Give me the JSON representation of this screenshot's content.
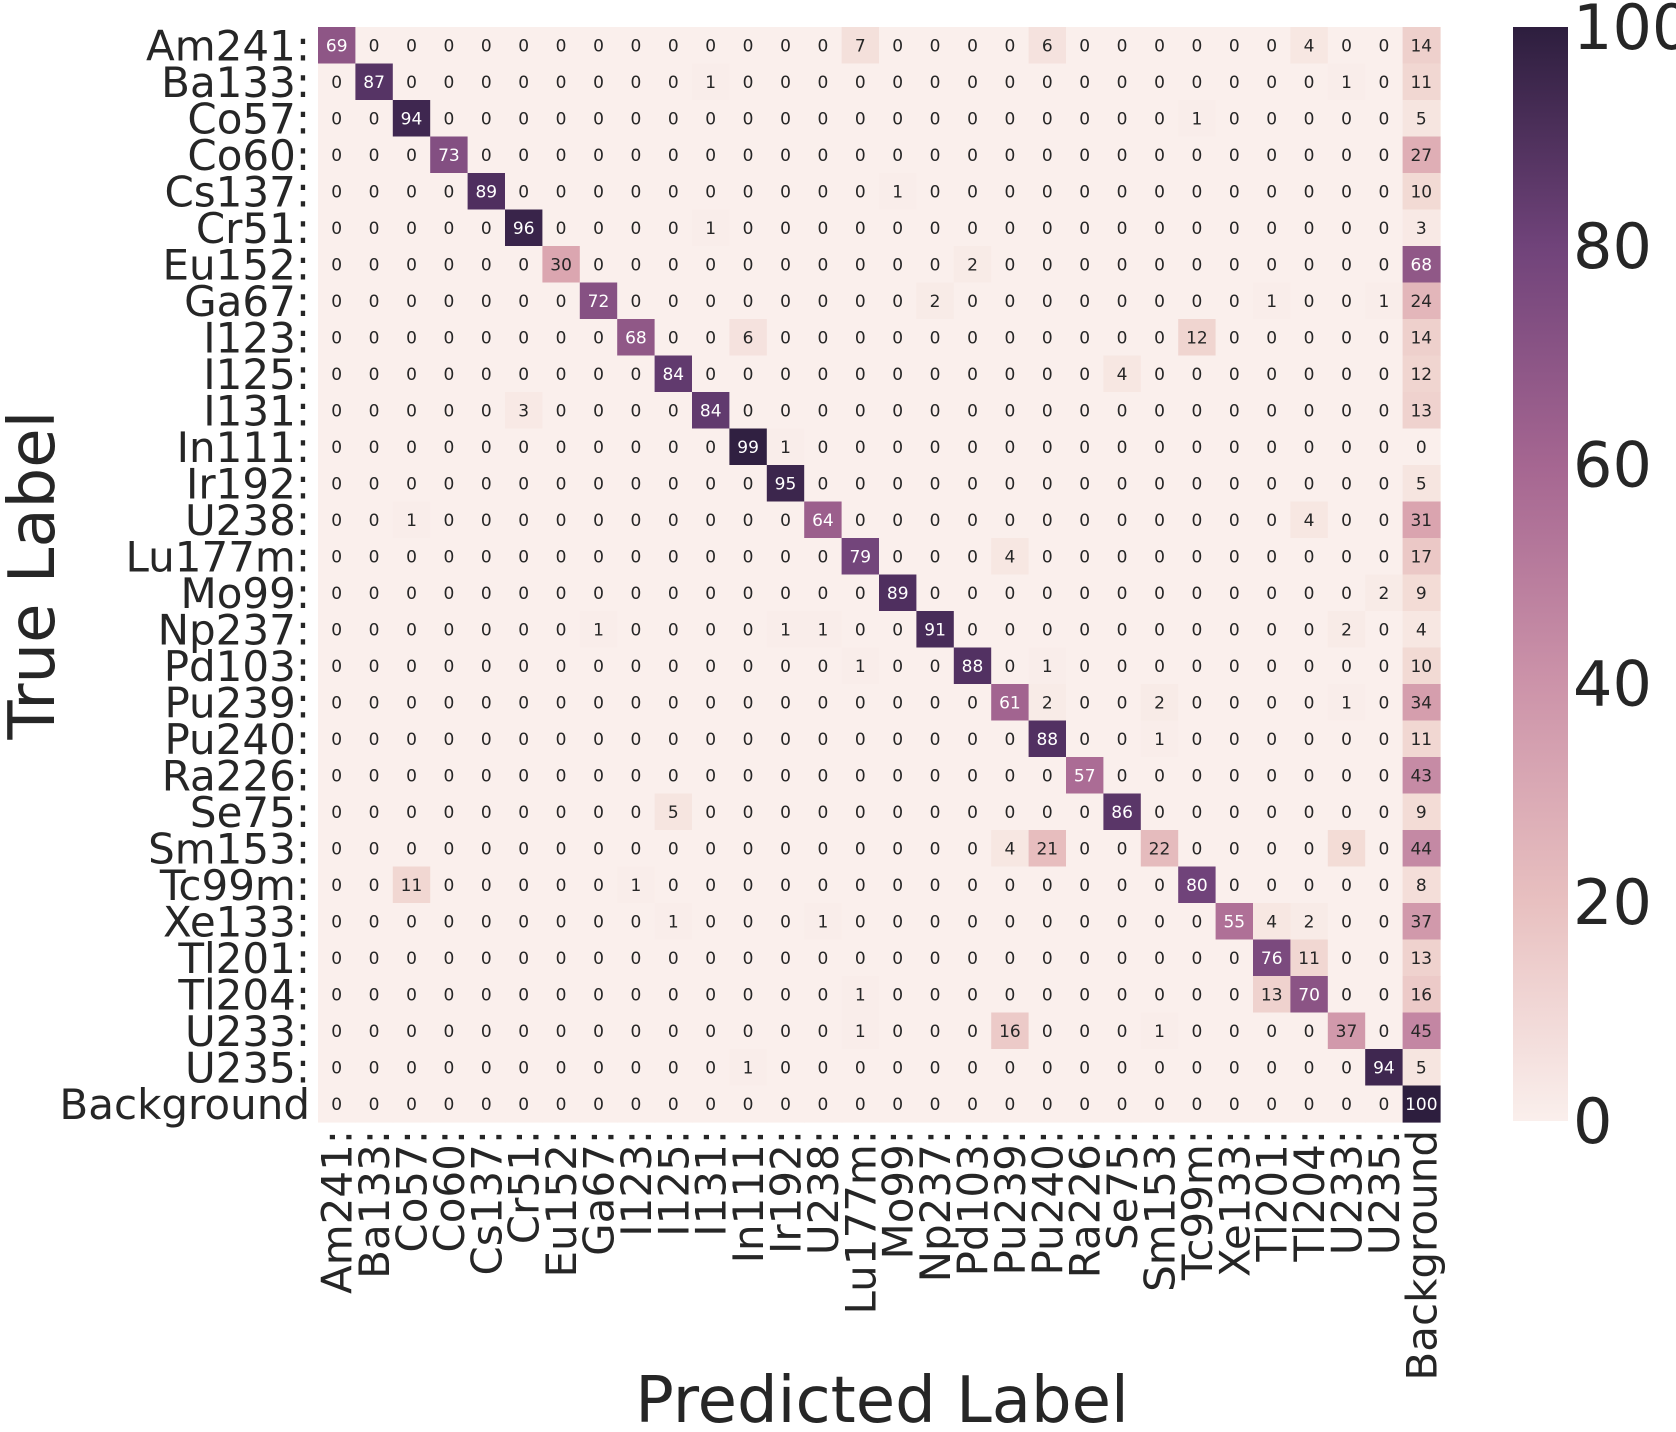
{
  "chart_data": {
    "type": "heatmap",
    "xlabel": "Predicted Label",
    "ylabel": "True Label",
    "x_categories": [
      "Am241:",
      "Ba133:",
      "Co57:",
      "Co60:",
      "Cs137:",
      "Cr51:",
      "Eu152:",
      "Ga67:",
      "I123:",
      "I125:",
      "I131:",
      "In111:",
      "Ir192:",
      "U238:",
      "Lu177m:",
      "Mo99:",
      "Np237:",
      "Pd103:",
      "Pu239:",
      "Pu240:",
      "Ra226:",
      "Se75:",
      "Sm153:",
      "Tc99m:",
      "Xe133:",
      "Tl201:",
      "Tl204:",
      "U233:",
      "U235:",
      "Background"
    ],
    "y_categories": [
      "Am241:",
      "Ba133:",
      "Co57:",
      "Co60:",
      "Cs137:",
      "Cr51:",
      "Eu152:",
      "Ga67:",
      "I123:",
      "I125:",
      "I131:",
      "In111:",
      "Ir192:",
      "U238:",
      "Lu177m:",
      "Mo99:",
      "Np237:",
      "Pd103:",
      "Pu239:",
      "Pu240:",
      "Ra226:",
      "Se75:",
      "Sm153:",
      "Tc99m:",
      "Xe133:",
      "Tl201:",
      "Tl204:",
      "U233:",
      "U235:",
      "Background"
    ],
    "values": [
      [
        69,
        0,
        0,
        0,
        0,
        0,
        0,
        0,
        0,
        0,
        0,
        0,
        0,
        0,
        7,
        0,
        0,
        0,
        0,
        6,
        0,
        0,
        0,
        0,
        0,
        0,
        4,
        0,
        0,
        14
      ],
      [
        0,
        87,
        0,
        0,
        0,
        0,
        0,
        0,
        0,
        0,
        1,
        0,
        0,
        0,
        0,
        0,
        0,
        0,
        0,
        0,
        0,
        0,
        0,
        0,
        0,
        0,
        0,
        1,
        0,
        11
      ],
      [
        0,
        0,
        94,
        0,
        0,
        0,
        0,
        0,
        0,
        0,
        0,
        0,
        0,
        0,
        0,
        0,
        0,
        0,
        0,
        0,
        0,
        0,
        0,
        1,
        0,
        0,
        0,
        0,
        0,
        5
      ],
      [
        0,
        0,
        0,
        73,
        0,
        0,
        0,
        0,
        0,
        0,
        0,
        0,
        0,
        0,
        0,
        0,
        0,
        0,
        0,
        0,
        0,
        0,
        0,
        0,
        0,
        0,
        0,
        0,
        0,
        27
      ],
      [
        0,
        0,
        0,
        0,
        89,
        0,
        0,
        0,
        0,
        0,
        0,
        0,
        0,
        0,
        0,
        1,
        0,
        0,
        0,
        0,
        0,
        0,
        0,
        0,
        0,
        0,
        0,
        0,
        0,
        10
      ],
      [
        0,
        0,
        0,
        0,
        0,
        96,
        0,
        0,
        0,
        0,
        1,
        0,
        0,
        0,
        0,
        0,
        0,
        0,
        0,
        0,
        0,
        0,
        0,
        0,
        0,
        0,
        0,
        0,
        0,
        3
      ],
      [
        0,
        0,
        0,
        0,
        0,
        0,
        30,
        0,
        0,
        0,
        0,
        0,
        0,
        0,
        0,
        0,
        0,
        2,
        0,
        0,
        0,
        0,
        0,
        0,
        0,
        0,
        0,
        0,
        0,
        68
      ],
      [
        0,
        0,
        0,
        0,
        0,
        0,
        0,
        72,
        0,
        0,
        0,
        0,
        0,
        0,
        0,
        0,
        2,
        0,
        0,
        0,
        0,
        0,
        0,
        0,
        0,
        1,
        0,
        0,
        1,
        24
      ],
      [
        0,
        0,
        0,
        0,
        0,
        0,
        0,
        0,
        68,
        0,
        0,
        6,
        0,
        0,
        0,
        0,
        0,
        0,
        0,
        0,
        0,
        0,
        0,
        12,
        0,
        0,
        0,
        0,
        0,
        14
      ],
      [
        0,
        0,
        0,
        0,
        0,
        0,
        0,
        0,
        0,
        84,
        0,
        0,
        0,
        0,
        0,
        0,
        0,
        0,
        0,
        0,
        0,
        4,
        0,
        0,
        0,
        0,
        0,
        0,
        0,
        12
      ],
      [
        0,
        0,
        0,
        0,
        0,
        3,
        0,
        0,
        0,
        0,
        84,
        0,
        0,
        0,
        0,
        0,
        0,
        0,
        0,
        0,
        0,
        0,
        0,
        0,
        0,
        0,
        0,
        0,
        0,
        13
      ],
      [
        0,
        0,
        0,
        0,
        0,
        0,
        0,
        0,
        0,
        0,
        0,
        99,
        1,
        0,
        0,
        0,
        0,
        0,
        0,
        0,
        0,
        0,
        0,
        0,
        0,
        0,
        0,
        0,
        0,
        0
      ],
      [
        0,
        0,
        0,
        0,
        0,
        0,
        0,
        0,
        0,
        0,
        0,
        0,
        95,
        0,
        0,
        0,
        0,
        0,
        0,
        0,
        0,
        0,
        0,
        0,
        0,
        0,
        0,
        0,
        0,
        5
      ],
      [
        0,
        0,
        1,
        0,
        0,
        0,
        0,
        0,
        0,
        0,
        0,
        0,
        0,
        64,
        0,
        0,
        0,
        0,
        0,
        0,
        0,
        0,
        0,
        0,
        0,
        0,
        4,
        0,
        0,
        31
      ],
      [
        0,
        0,
        0,
        0,
        0,
        0,
        0,
        0,
        0,
        0,
        0,
        0,
        0,
        0,
        79,
        0,
        0,
        0,
        4,
        0,
        0,
        0,
        0,
        0,
        0,
        0,
        0,
        0,
        0,
        17
      ],
      [
        0,
        0,
        0,
        0,
        0,
        0,
        0,
        0,
        0,
        0,
        0,
        0,
        0,
        0,
        0,
        89,
        0,
        0,
        0,
        0,
        0,
        0,
        0,
        0,
        0,
        0,
        0,
        0,
        2,
        9
      ],
      [
        0,
        0,
        0,
        0,
        0,
        0,
        0,
        1,
        0,
        0,
        0,
        0,
        1,
        1,
        0,
        0,
        91,
        0,
        0,
        0,
        0,
        0,
        0,
        0,
        0,
        0,
        0,
        2,
        0,
        4
      ],
      [
        0,
        0,
        0,
        0,
        0,
        0,
        0,
        0,
        0,
        0,
        0,
        0,
        0,
        0,
        1,
        0,
        0,
        88,
        0,
        1,
        0,
        0,
        0,
        0,
        0,
        0,
        0,
        0,
        0,
        10
      ],
      [
        0,
        0,
        0,
        0,
        0,
        0,
        0,
        0,
        0,
        0,
        0,
        0,
        0,
        0,
        0,
        0,
        0,
        0,
        61,
        2,
        0,
        0,
        2,
        0,
        0,
        0,
        0,
        1,
        0,
        34
      ],
      [
        0,
        0,
        0,
        0,
        0,
        0,
        0,
        0,
        0,
        0,
        0,
        0,
        0,
        0,
        0,
        0,
        0,
        0,
        0,
        88,
        0,
        0,
        1,
        0,
        0,
        0,
        0,
        0,
        0,
        11
      ],
      [
        0,
        0,
        0,
        0,
        0,
        0,
        0,
        0,
        0,
        0,
        0,
        0,
        0,
        0,
        0,
        0,
        0,
        0,
        0,
        0,
        57,
        0,
        0,
        0,
        0,
        0,
        0,
        0,
        0,
        43
      ],
      [
        0,
        0,
        0,
        0,
        0,
        0,
        0,
        0,
        0,
        5,
        0,
        0,
        0,
        0,
        0,
        0,
        0,
        0,
        0,
        0,
        0,
        86,
        0,
        0,
        0,
        0,
        0,
        0,
        0,
        9
      ],
      [
        0,
        0,
        0,
        0,
        0,
        0,
        0,
        0,
        0,
        0,
        0,
        0,
        0,
        0,
        0,
        0,
        0,
        0,
        4,
        21,
        0,
        0,
        22,
        0,
        0,
        0,
        0,
        9,
        0,
        44
      ],
      [
        0,
        0,
        11,
        0,
        0,
        0,
        0,
        0,
        1,
        0,
        0,
        0,
        0,
        0,
        0,
        0,
        0,
        0,
        0,
        0,
        0,
        0,
        0,
        80,
        0,
        0,
        0,
        0,
        0,
        8
      ],
      [
        0,
        0,
        0,
        0,
        0,
        0,
        0,
        0,
        0,
        1,
        0,
        0,
        0,
        1,
        0,
        0,
        0,
        0,
        0,
        0,
        0,
        0,
        0,
        0,
        55,
        4,
        2,
        0,
        0,
        37
      ],
      [
        0,
        0,
        0,
        0,
        0,
        0,
        0,
        0,
        0,
        0,
        0,
        0,
        0,
        0,
        0,
        0,
        0,
        0,
        0,
        0,
        0,
        0,
        0,
        0,
        0,
        76,
        11,
        0,
        0,
        13
      ],
      [
        0,
        0,
        0,
        0,
        0,
        0,
        0,
        0,
        0,
        0,
        0,
        0,
        0,
        0,
        1,
        0,
        0,
        0,
        0,
        0,
        0,
        0,
        0,
        0,
        0,
        13,
        70,
        0,
        0,
        16
      ],
      [
        0,
        0,
        0,
        0,
        0,
        0,
        0,
        0,
        0,
        0,
        0,
        0,
        0,
        0,
        1,
        0,
        0,
        0,
        16,
        0,
        0,
        0,
        1,
        0,
        0,
        0,
        0,
        37,
        0,
        45
      ],
      [
        0,
        0,
        0,
        0,
        0,
        0,
        0,
        0,
        0,
        0,
        0,
        1,
        0,
        0,
        0,
        0,
        0,
        0,
        0,
        0,
        0,
        0,
        0,
        0,
        0,
        0,
        0,
        0,
        94,
        5
      ],
      [
        0,
        0,
        0,
        0,
        0,
        0,
        0,
        0,
        0,
        0,
        0,
        0,
        0,
        0,
        0,
        0,
        0,
        0,
        0,
        0,
        0,
        0,
        0,
        0,
        0,
        0,
        0,
        0,
        0,
        100
      ]
    ],
    "colorbar": {
      "min": 0,
      "max": 100,
      "ticks": [
        "0",
        "20",
        "40",
        "60",
        "80",
        "100"
      ]
    },
    "colormap": {
      "low": "#f9ece8",
      "mid": "#c08aa3",
      "high": "#2d1e3e"
    },
    "grid": false
  }
}
